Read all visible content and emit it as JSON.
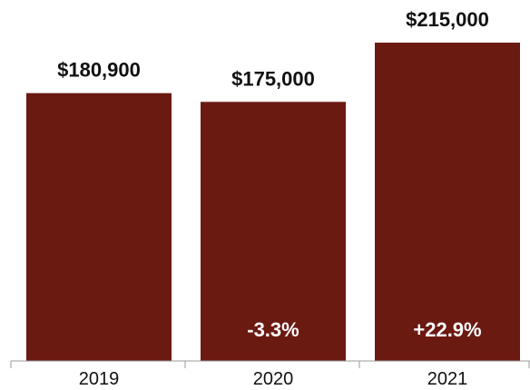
{
  "chart_data": {
    "type": "bar",
    "categories": [
      "2019",
      "2020",
      "2021"
    ],
    "values": [
      180900,
      175000,
      215000
    ],
    "value_labels": [
      "$180,900",
      "$175,000",
      "$215,000"
    ],
    "change_labels": [
      "",
      "-3.3%",
      "+22.9%"
    ],
    "title": "",
    "xlabel": "",
    "ylabel": "",
    "ylim": [
      0,
      215000
    ],
    "grid": false,
    "legend": "none",
    "colors": {
      "bar": "#6b1a12",
      "axis": "#9a9a9a",
      "value_text": "#111111",
      "change_text": "#ffffff"
    }
  }
}
